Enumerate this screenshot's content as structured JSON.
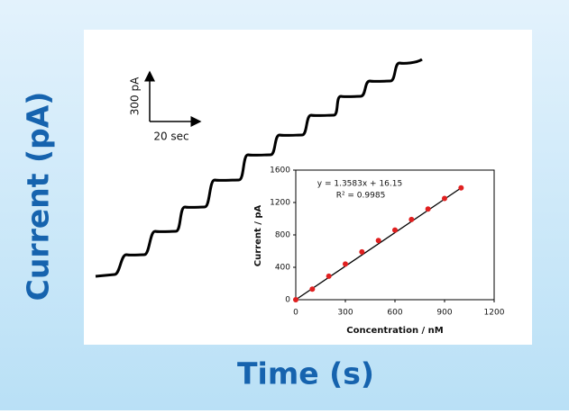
{
  "chart_data": {
    "type": "scatter",
    "ylabel_main": "Current (pA)",
    "xlabel_main": "Time (s)",
    "scale_y_label": "300 pA",
    "scale_x_label": "20 sec",
    "annotations": [
      "y = 1.3583x + 16.15",
      "R² = 0.9985"
    ],
    "xlabel": "Concentration / nM",
    "ylabel": "Current / pA",
    "x": [
      0,
      100,
      200,
      300,
      400,
      500,
      600,
      700,
      800,
      900,
      1000
    ],
    "series": [
      {
        "name": "Current",
        "color": "#e02020",
        "values": [
          0,
          130,
          290,
          440,
          590,
          730,
          860,
          990,
          1120,
          1250,
          1380
        ]
      }
    ],
    "fit_color": "#000000",
    "xlim": [
      0,
      1200
    ],
    "xticks": [
      0,
      300,
      600,
      900,
      1200
    ],
    "ylim": [
      0,
      1600
    ],
    "yticks": [
      0,
      400,
      800,
      1200,
      1600
    ]
  }
}
